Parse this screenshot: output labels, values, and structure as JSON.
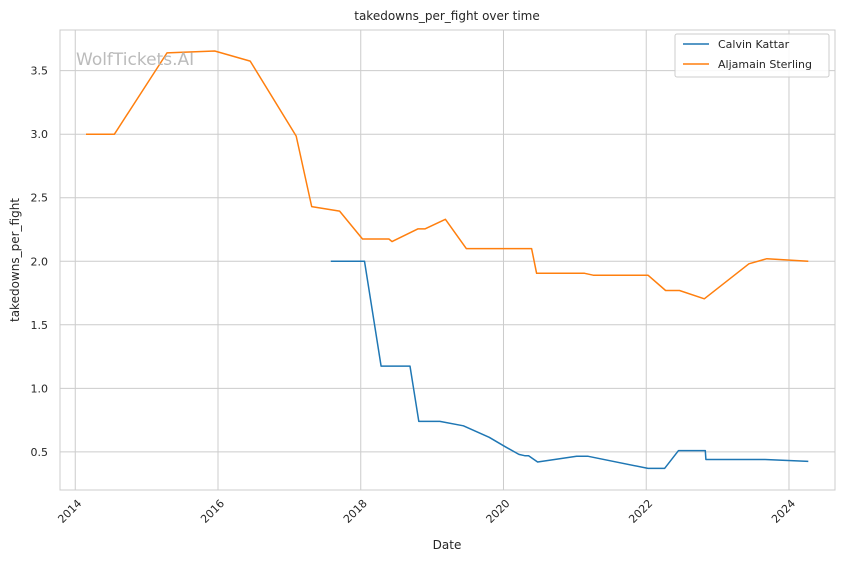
{
  "chart_data": {
    "type": "line",
    "title": "takedowns_per_fight over time",
    "xlabel": "Date",
    "ylabel": "takedowns_per_fight",
    "watermark": "WolfTickets.AI",
    "x_ticks": [
      "2014",
      "2016",
      "2018",
      "2020",
      "2022",
      "2024"
    ],
    "y_ticks": [
      "0.5",
      "1.0",
      "1.5",
      "2.0",
      "2.5",
      "3.0",
      "3.5"
    ],
    "xlim": [
      "2013-10-15",
      "2024-08-25"
    ],
    "ylim": [
      0.2,
      3.82
    ],
    "grid": true,
    "legend_position": "top-right",
    "series": [
      {
        "name": "Calvin Kattar",
        "color": "#1f77b4",
        "points": [
          [
            "2017-08-01",
            2.0
          ],
          [
            "2018-01-20",
            2.0
          ],
          [
            "2018-04-15",
            1.175
          ],
          [
            "2018-09-10",
            1.175
          ],
          [
            "2018-10-25",
            0.74
          ],
          [
            "2019-02-10",
            0.74
          ],
          [
            "2019-06-10",
            0.705
          ],
          [
            "2019-10-20",
            0.615
          ],
          [
            "2020-01-05",
            0.545
          ],
          [
            "2020-03-20",
            0.48
          ],
          [
            "2020-04-20",
            0.47
          ],
          [
            "2020-05-10",
            0.47
          ],
          [
            "2020-06-25",
            0.42
          ],
          [
            "2021-01-10",
            0.465
          ],
          [
            "2021-03-10",
            0.465
          ],
          [
            "2022-01-10",
            0.37
          ],
          [
            "2022-04-05",
            0.37
          ],
          [
            "2022-06-15",
            0.51
          ],
          [
            "2022-10-30",
            0.51
          ],
          [
            "2022-11-02",
            0.44
          ],
          [
            "2023-09-01",
            0.44
          ],
          [
            "2024-04-10",
            0.425
          ]
        ]
      },
      {
        "name": "Aljamain Sterling",
        "color": "#ff7f0e",
        "points": [
          [
            "2014-02-25",
            3.0
          ],
          [
            "2014-07-20",
            3.0
          ],
          [
            "2015-04-15",
            3.64
          ],
          [
            "2015-12-15",
            3.655
          ],
          [
            "2016-06-15",
            3.575
          ],
          [
            "2017-02-05",
            2.985
          ],
          [
            "2017-04-25",
            2.43
          ],
          [
            "2017-09-15",
            2.395
          ],
          [
            "2018-01-10",
            2.175
          ],
          [
            "2018-05-25",
            2.175
          ],
          [
            "2018-06-10",
            2.155
          ],
          [
            "2018-10-20",
            2.255
          ],
          [
            "2018-11-25",
            2.255
          ],
          [
            "2019-03-10",
            2.33
          ],
          [
            "2019-06-25",
            2.1
          ],
          [
            "2020-05-25",
            2.1
          ],
          [
            "2020-06-20",
            1.905
          ],
          [
            "2021-02-20",
            1.905
          ],
          [
            "2021-04-05",
            1.89
          ],
          [
            "2022-01-10",
            1.89
          ],
          [
            "2022-04-10",
            1.77
          ],
          [
            "2022-06-20",
            1.77
          ],
          [
            "2022-10-25",
            1.705
          ],
          [
            "2023-06-10",
            1.98
          ],
          [
            "2023-09-10",
            2.02
          ],
          [
            "2024-04-10",
            2.0
          ]
        ]
      }
    ]
  }
}
